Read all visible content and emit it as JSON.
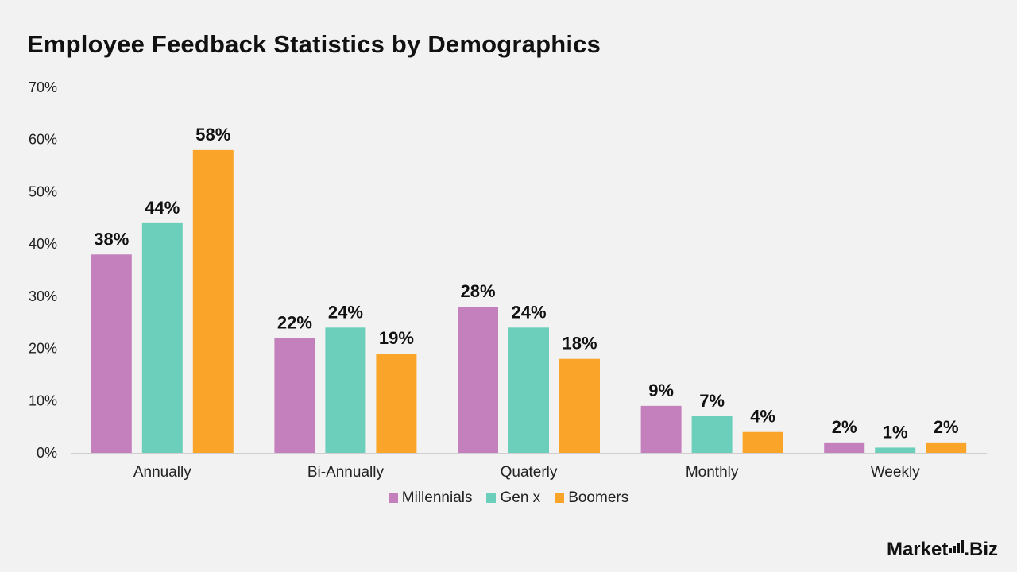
{
  "title": "Employee Feedback Statistics by Demographics",
  "brand": {
    "part1": "Market",
    "part2": ".Biz"
  },
  "chart_data": {
    "type": "bar",
    "title": "Employee Feedback Statistics by Demographics",
    "categories": [
      "Annually",
      "Bi-Annually",
      "Quaterly",
      "Monthly",
      "Weekly"
    ],
    "series": [
      {
        "name": "Millennials",
        "color": "#c47fbd",
        "values": [
          38,
          22,
          28,
          9,
          2
        ]
      },
      {
        "name": "Gen x",
        "color": "#6ccfbb",
        "values": [
          44,
          24,
          24,
          7,
          1
        ]
      },
      {
        "name": "Boomers",
        "color": "#faa52a",
        "values": [
          58,
          19,
          18,
          4,
          2
        ]
      }
    ],
    "ylim": [
      0,
      70
    ],
    "yticks": [
      "0%",
      "10%",
      "20%",
      "30%",
      "40%",
      "50%",
      "60%",
      "70%"
    ],
    "data_label_suffix": "%",
    "legend_position": "bottom",
    "grid": false
  }
}
